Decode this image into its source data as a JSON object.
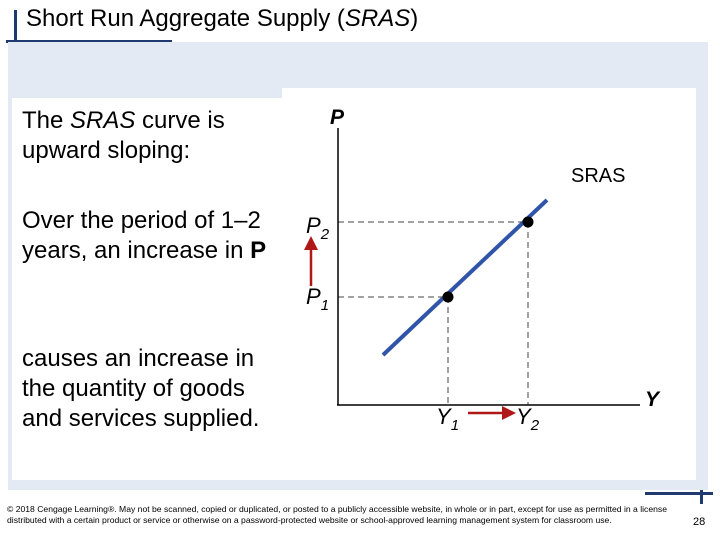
{
  "slide": {
    "title_main": "Short Run Aggregate Supply (",
    "title_italic": "SRAS",
    "title_close": ")",
    "intro_italic": "SRAS",
    "intro_pre": "The ",
    "intro_post": " curve is upward sloping:",
    "para2_text": "Over the period of 1–2 years, an increase in ",
    "para2_bold": "P",
    "para3": "causes an increase in the quantity of goods and services supplied.",
    "footer": "© 2018 Cengage Learning®. May not be scanned, copied or duplicated, or posted to a publicly accessible website, in whole or in part, except for use as permitted in a license distributed with a certain product or service or otherwise on a password-protected website or school-approved learning management system for classroom use.",
    "page_number": "28"
  },
  "diagram": {
    "y_axis_label": "P",
    "x_axis_label": "Y",
    "curve_label": "SRAS",
    "p1_letter": "P",
    "p1_sub": "1",
    "p2_letter": "P",
    "p2_sub": "2",
    "y1_letter": "Y",
    "y1_sub": "1",
    "y2_letter": "Y",
    "y2_sub": "2",
    "colors": {
      "curve": "#2f54a8",
      "arrow": "#b01818",
      "axis": "#000000",
      "dashes": "#444444"
    },
    "icons": [
      "up-arrow-icon",
      "right-arrow-icon",
      "point-marker-icon"
    ]
  }
}
